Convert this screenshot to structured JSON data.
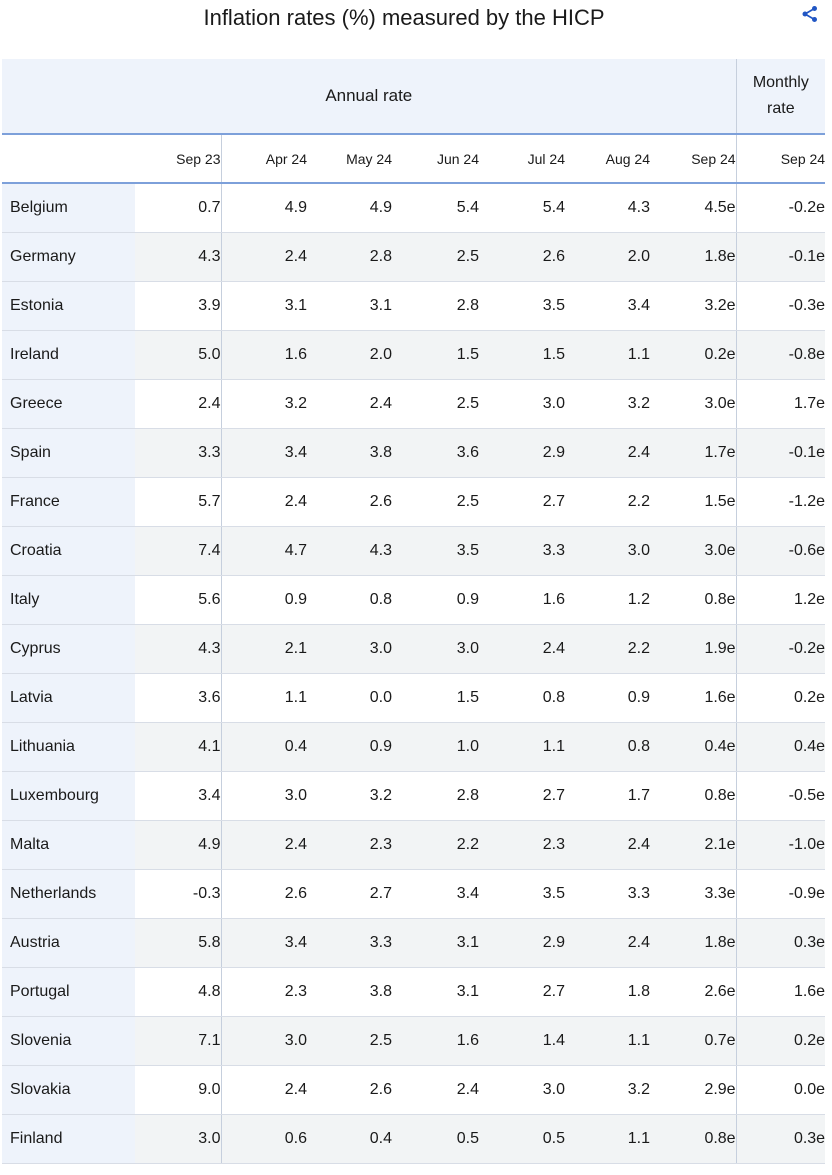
{
  "title": "Inflation rates (%) measured by the HICP",
  "share_icon": "share-icon",
  "header": {
    "annual_label": "Annual rate",
    "monthly_label_line1": "Monthly",
    "monthly_label_line2": "rate",
    "columns": [
      "Sep 23",
      "Apr 24",
      "May 24",
      "Jun 24",
      "Jul 24",
      "Aug 24",
      "Sep 24",
      "Sep 24"
    ]
  },
  "rows": [
    {
      "country": "Belgium",
      "values": [
        "0.7",
        "4.9",
        "4.9",
        "5.4",
        "5.4",
        "4.3",
        "4.5e",
        "-0.2e"
      ]
    },
    {
      "country": "Germany",
      "values": [
        "4.3",
        "2.4",
        "2.8",
        "2.5",
        "2.6",
        "2.0",
        "1.8e",
        "-0.1e"
      ]
    },
    {
      "country": "Estonia",
      "values": [
        "3.9",
        "3.1",
        "3.1",
        "2.8",
        "3.5",
        "3.4",
        "3.2e",
        "-0.3e"
      ]
    },
    {
      "country": "Ireland",
      "values": [
        "5.0",
        "1.6",
        "2.0",
        "1.5",
        "1.5",
        "1.1",
        "0.2e",
        "-0.8e"
      ]
    },
    {
      "country": "Greece",
      "values": [
        "2.4",
        "3.2",
        "2.4",
        "2.5",
        "3.0",
        "3.2",
        "3.0e",
        "1.7e"
      ]
    },
    {
      "country": "Spain",
      "values": [
        "3.3",
        "3.4",
        "3.8",
        "3.6",
        "2.9",
        "2.4",
        "1.7e",
        "-0.1e"
      ]
    },
    {
      "country": "France",
      "values": [
        "5.7",
        "2.4",
        "2.6",
        "2.5",
        "2.7",
        "2.2",
        "1.5e",
        "-1.2e"
      ]
    },
    {
      "country": "Croatia",
      "values": [
        "7.4",
        "4.7",
        "4.3",
        "3.5",
        "3.3",
        "3.0",
        "3.0e",
        "-0.6e"
      ]
    },
    {
      "country": "Italy",
      "values": [
        "5.6",
        "0.9",
        "0.8",
        "0.9",
        "1.6",
        "1.2",
        "0.8e",
        "1.2e"
      ]
    },
    {
      "country": "Cyprus",
      "values": [
        "4.3",
        "2.1",
        "3.0",
        "3.0",
        "2.4",
        "2.2",
        "1.9e",
        "-0.2e"
      ]
    },
    {
      "country": "Latvia",
      "values": [
        "3.6",
        "1.1",
        "0.0",
        "1.5",
        "0.8",
        "0.9",
        "1.6e",
        "0.2e"
      ]
    },
    {
      "country": "Lithuania",
      "values": [
        "4.1",
        "0.4",
        "0.9",
        "1.0",
        "1.1",
        "0.8",
        "0.4e",
        "0.4e"
      ]
    },
    {
      "country": "Luxembourg",
      "values": [
        "3.4",
        "3.0",
        "3.2",
        "2.8",
        "2.7",
        "1.7",
        "0.8e",
        "-0.5e"
      ]
    },
    {
      "country": "Malta",
      "values": [
        "4.9",
        "2.4",
        "2.3",
        "2.2",
        "2.3",
        "2.4",
        "2.1e",
        "-1.0e"
      ]
    },
    {
      "country": "Netherlands",
      "values": [
        "-0.3",
        "2.6",
        "2.7",
        "3.4",
        "3.5",
        "3.3",
        "3.3e",
        "-0.9e"
      ]
    },
    {
      "country": "Austria",
      "values": [
        "5.8",
        "3.4",
        "3.3",
        "3.1",
        "2.9",
        "2.4",
        "1.8e",
        "0.3e"
      ]
    },
    {
      "country": "Portugal",
      "values": [
        "4.8",
        "2.3",
        "3.8",
        "3.1",
        "2.7",
        "1.8",
        "2.6e",
        "1.6e"
      ]
    },
    {
      "country": "Slovenia",
      "values": [
        "7.1",
        "3.0",
        "2.5",
        "1.6",
        "1.4",
        "1.1",
        "0.7e",
        "0.2e"
      ]
    },
    {
      "country": "Slovakia",
      "values": [
        "9.0",
        "2.4",
        "2.6",
        "2.4",
        "3.0",
        "3.2",
        "2.9e",
        "0.0e"
      ]
    },
    {
      "country": "Finland",
      "values": [
        "3.0",
        "0.6",
        "0.4",
        "0.5",
        "0.5",
        "1.1",
        "0.8e",
        "0.3e"
      ]
    }
  ],
  "colors": {
    "header_background": "#eef3fb",
    "header_rule": "#7da0da",
    "alt_row": "#f2f4f5"
  }
}
